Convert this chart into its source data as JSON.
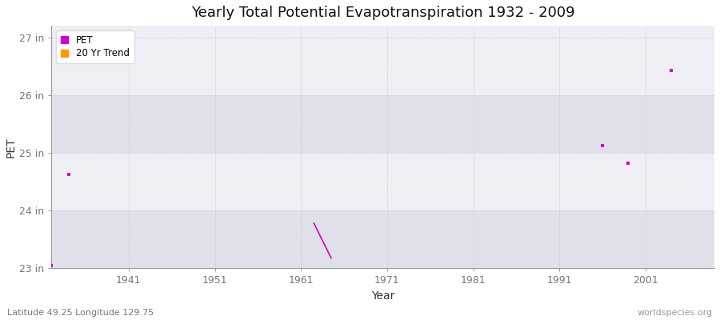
{
  "title": "Yearly Total Potential Evapotranspiration 1932 - 2009",
  "xlabel": "Year",
  "ylabel": "PET",
  "xlim": [
    1932,
    2009
  ],
  "ylim": [
    23.0,
    27.2
  ],
  "yticks": [
    23,
    24,
    25,
    26,
    27
  ],
  "ytick_labels": [
    "23 in",
    "24 in",
    "25 in",
    "26 in",
    "27 in"
  ],
  "xticks": [
    1941,
    1951,
    1961,
    1971,
    1981,
    1991,
    2001
  ],
  "pet_points": [
    [
      1932,
      23.05
    ],
    [
      1934,
      24.62
    ],
    [
      1996,
      25.12
    ],
    [
      1999,
      24.82
    ],
    [
      2004,
      26.42
    ]
  ],
  "trend_line": [
    [
      1962.5,
      23.78
    ],
    [
      1964.5,
      23.18
    ]
  ],
  "pet_color": "#cc00cc",
  "trend_color": "#ff9900",
  "figure_bg": "#ffffff",
  "plot_bg_light": "#eeeef4",
  "plot_bg_dark": "#e0e0ea",
  "grid_color": "#cccccc",
  "band_ranges": [
    [
      23.0,
      24.0
    ],
    [
      25.0,
      26.0
    ]
  ],
  "legend_labels": [
    "PET",
    "20 Yr Trend"
  ],
  "bottom_left_text": "Latitude 49.25 Longitude 129.75",
  "bottom_right_text": "worldspecies.org",
  "figsize": [
    9.0,
    4.0
  ],
  "dpi": 100
}
